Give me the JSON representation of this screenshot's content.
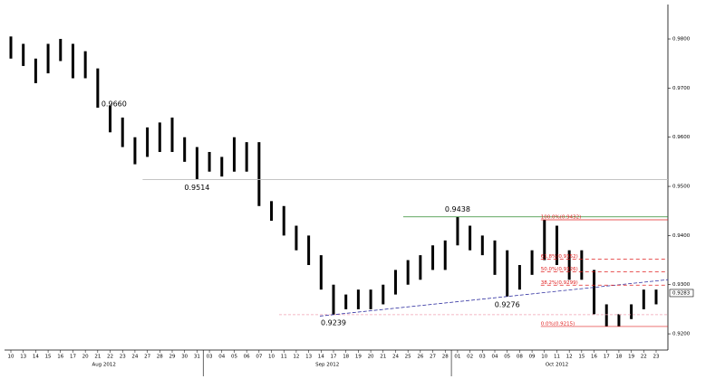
{
  "chart_data": {
    "type": "range",
    "color": "#000000",
    "ylim": [
      0.9167,
      0.987
    ],
    "yticks": [
      {
        "value": 0.92,
        "label": "0.9200"
      },
      {
        "value": 0.93,
        "label": "0.9300"
      },
      {
        "value": 0.94,
        "label": "0.9400"
      },
      {
        "value": 0.95,
        "label": "0.9500"
      },
      {
        "value": 0.96,
        "label": "0.9600"
      },
      {
        "value": 0.97,
        "label": "0.9700"
      },
      {
        "value": 0.98,
        "label": "0.9800"
      }
    ],
    "groups": [
      {
        "label": "Aug 2012",
        "categories": [
          "10",
          "13",
          "14",
          "15",
          "16",
          "17",
          "20",
          "21",
          "22",
          "23",
          "24",
          "27",
          "28",
          "29",
          "30",
          "31"
        ],
        "high": [
          0.9805,
          0.979,
          0.976,
          0.979,
          0.98,
          0.979,
          0.9775,
          0.974,
          0.9665,
          0.964,
          0.96,
          0.962,
          0.963,
          0.964,
          0.96,
          0.958
        ],
        "low": [
          0.976,
          0.9745,
          0.971,
          0.973,
          0.9755,
          0.972,
          0.972,
          0.966,
          0.961,
          0.958,
          0.9545,
          0.956,
          0.957,
          0.957,
          0.955,
          0.9514
        ]
      },
      {
        "label": "Sep 2012",
        "categories": [
          "03",
          "04",
          "05",
          "06",
          "07",
          "10",
          "11",
          "12",
          "13",
          "14",
          "17",
          "18",
          "19",
          "20",
          "21",
          "24",
          "25",
          "26",
          "27",
          "28"
        ],
        "high": [
          0.957,
          0.956,
          0.96,
          0.959,
          0.959,
          0.947,
          0.946,
          0.942,
          0.94,
          0.936,
          0.93,
          0.928,
          0.929,
          0.929,
          0.93,
          0.933,
          0.935,
          0.936,
          0.938,
          0.939
        ],
        "low": [
          0.953,
          0.952,
          0.953,
          0.953,
          0.946,
          0.943,
          0.94,
          0.937,
          0.934,
          0.929,
          0.9239,
          0.925,
          0.925,
          0.925,
          0.926,
          0.928,
          0.93,
          0.931,
          0.933,
          0.933
        ]
      },
      {
        "label": "Oct 2012",
        "categories": [
          "01",
          "02",
          "03",
          "04",
          "05",
          "08",
          "09",
          "10",
          "11",
          "12",
          "15",
          "16",
          "17",
          "18",
          "19",
          "22",
          "23"
        ],
        "high": [
          0.9438,
          0.942,
          0.94,
          0.939,
          0.937,
          0.934,
          0.937,
          0.9432,
          0.942,
          0.937,
          0.937,
          0.933,
          0.926,
          0.924,
          0.926,
          0.929,
          0.929
        ],
        "low": [
          0.938,
          0.937,
          0.936,
          0.932,
          0.9276,
          0.929,
          0.932,
          0.935,
          0.934,
          0.931,
          0.931,
          0.924,
          0.9215,
          0.9215,
          0.923,
          0.925,
          0.926
        ]
      }
    ],
    "annotations": [
      {
        "value": 0.966,
        "label": "0.9660",
        "position": "right"
      },
      {
        "value": 0.9514,
        "label": "0.9514",
        "position": "below",
        "line": "#bbbbbb"
      },
      {
        "value": 0.9438,
        "label": "0.9438",
        "position": "above",
        "line": "#2e8b2e"
      },
      {
        "value": 0.9239,
        "label": "0.9239",
        "position": "below",
        "line": "#f0a0b0"
      },
      {
        "value": 0.9276,
        "label": "0.9276",
        "position": "below"
      }
    ],
    "trendline": {
      "color": "#3030a0"
    },
    "fib": {
      "color": "#e02020",
      "levels": [
        {
          "value": 0.9432,
          "label": "100.0%(0.9432)",
          "dashed": false
        },
        {
          "value": 0.9352,
          "label": "61.8%(0.9352)",
          "dashed": true
        },
        {
          "value": 0.9326,
          "label": "50.0%(0.9326)",
          "dashed": true
        },
        {
          "value": 0.9299,
          "label": "38.2%(0.9299)",
          "dashed": true
        },
        {
          "value": 0.9215,
          "label": "0.0%(0.9215)",
          "dashed": false
        }
      ]
    },
    "last": {
      "value": 0.9283,
      "label": "0.9283"
    }
  }
}
